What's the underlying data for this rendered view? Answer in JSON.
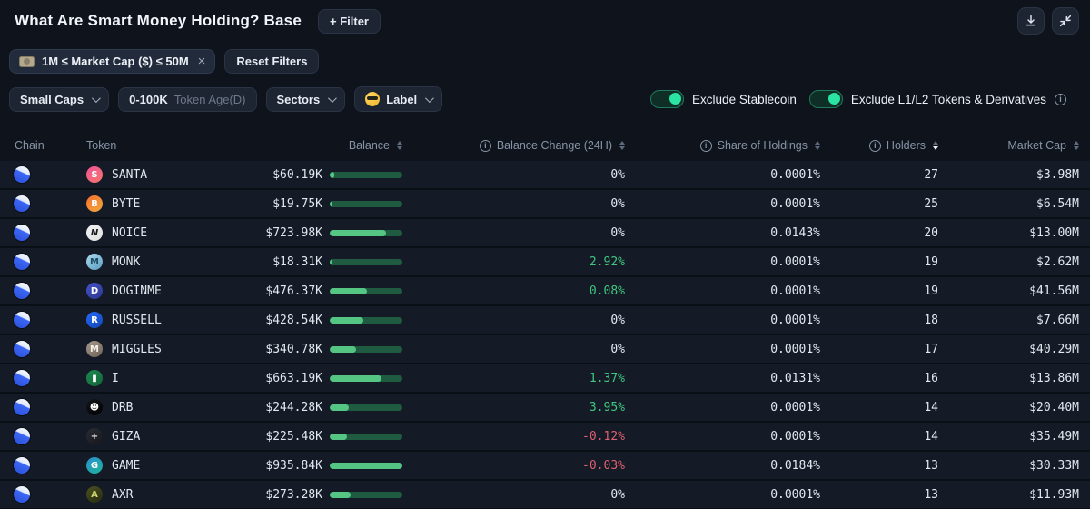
{
  "header": {
    "title": "What Are Smart Money Holding? Base",
    "filter_button": "+ Filter"
  },
  "filter_bar": {
    "chip_label": "1M ≤ Market Cap ($) ≤ 50M",
    "chip_close": "×",
    "reset_label": "Reset Filters"
  },
  "controls": {
    "market_cap_value": "Small Caps",
    "token_age_value": "0-100K",
    "token_age_label": "Token Age(D)",
    "sectors_label": "Sectors",
    "label_label": "Label",
    "toggles": [
      {
        "label": "Exclude Stablecoin",
        "on": true,
        "info": false
      },
      {
        "label": "Exclude L1/L2 Tokens & Derivatives",
        "on": true,
        "info": true
      }
    ]
  },
  "icons": {
    "top_right": [
      "download-icon",
      "collapse-icon"
    ],
    "chain": "base-chain-icon",
    "chip": "money-banknote-icon",
    "label_chip": "sunglasses-face-icon"
  },
  "colors": {
    "accent_green": "#2be3a2",
    "bar_fill": "#55c584",
    "bar_track": "#1f5b40",
    "positive": "#3fc77f",
    "negative": "#e0606f",
    "background": "#0e131c",
    "row_bg": "#151b26"
  },
  "table": {
    "columns": [
      {
        "label": "Chain",
        "info": false,
        "sortable": false,
        "sorted": "none"
      },
      {
        "label": "Token",
        "info": false,
        "sortable": false,
        "sorted": "none"
      },
      {
        "label": "Balance",
        "info": false,
        "sortable": true,
        "sorted": "none"
      },
      {
        "label": "Balance Change (24H)",
        "info": true,
        "sortable": true,
        "sorted": "none"
      },
      {
        "label": "Share of Holdings",
        "info": true,
        "sortable": true,
        "sorted": "none"
      },
      {
        "label": "Holders",
        "info": true,
        "sortable": true,
        "sorted": "desc"
      },
      {
        "label": "Market Cap",
        "info": false,
        "sortable": true,
        "sorted": "none"
      }
    ],
    "rows": [
      {
        "chain": "Base",
        "token": "SANTA",
        "balance": "$60.19K",
        "bar_pct": 6.4,
        "change": "0%",
        "change_dir": "zero",
        "share": "0.0001%",
        "holders": "27",
        "market_cap": "$3.98M",
        "icon": {
          "glyph": "S",
          "bg": "#ee5296",
          "bg2": "#f8766b",
          "fg": "#ffffff",
          "italic": false
        }
      },
      {
        "chain": "Base",
        "token": "BYTE",
        "balance": "$19.75K",
        "bar_pct": 2.1,
        "change": "0%",
        "change_dir": "zero",
        "share": "0.0001%",
        "holders": "25",
        "market_cap": "$6.54M",
        "icon": {
          "glyph": "B",
          "bg": "#f4702f",
          "bg2": "#f2a93c",
          "fg": "#ffffff",
          "italic": false
        }
      },
      {
        "chain": "Base",
        "token": "NOICE",
        "balance": "$723.98K",
        "bar_pct": 77.4,
        "change": "0%",
        "change_dir": "zero",
        "share": "0.0143%",
        "holders": "20",
        "market_cap": "$13.00M",
        "icon": {
          "glyph": "N",
          "bg": "#f2f2f2",
          "bg2": "#e0e0e0",
          "fg": "#15161a",
          "italic": true
        }
      },
      {
        "chain": "Base",
        "token": "MONK",
        "balance": "$18.31K",
        "bar_pct": 2.0,
        "change": "2.92%",
        "change_dir": "pos",
        "share": "0.0001%",
        "holders": "19",
        "market_cap": "$2.62M",
        "icon": {
          "glyph": "M",
          "bg": "#aedcee",
          "bg2": "#5a9cc0",
          "fg": "#1d4e66",
          "italic": false
        }
      },
      {
        "chain": "Base",
        "token": "DOGINME",
        "balance": "$476.37K",
        "bar_pct": 50.9,
        "change": "0.08%",
        "change_dir": "pos",
        "share": "0.0001%",
        "holders": "19",
        "market_cap": "$41.56M",
        "icon": {
          "glyph": "D",
          "bg": "#4353c9",
          "bg2": "#2c3690",
          "fg": "#ffffff",
          "italic": false
        }
      },
      {
        "chain": "Base",
        "token": "RUSSELL",
        "balance": "$428.54K",
        "bar_pct": 45.8,
        "change": "0%",
        "change_dir": "zero",
        "share": "0.0001%",
        "holders": "18",
        "market_cap": "$7.66M",
        "icon": {
          "glyph": "R",
          "bg": "#2469f6",
          "bg2": "#1446b8",
          "fg": "#ffffff",
          "italic": false
        }
      },
      {
        "chain": "Base",
        "token": "MIGGLES",
        "balance": "$340.78K",
        "bar_pct": 36.4,
        "change": "0%",
        "change_dir": "zero",
        "share": "0.0001%",
        "holders": "17",
        "market_cap": "$40.29M",
        "icon": {
          "glyph": "M",
          "bg": "#a79a8c",
          "bg2": "#6e6258",
          "fg": "#f4efe8",
          "italic": false
        }
      },
      {
        "chain": "Base",
        "token": "I",
        "balance": "$663.19K",
        "bar_pct": 70.9,
        "change": "1.37%",
        "change_dir": "pos",
        "share": "0.0131%",
        "holders": "16",
        "market_cap": "$13.86M",
        "icon": {
          "glyph": "▮",
          "bg": "#1e8a50",
          "bg2": "#136239",
          "fg": "#ffffff",
          "italic": false
        }
      },
      {
        "chain": "Base",
        "token": "DRB",
        "balance": "$244.28K",
        "bar_pct": 26.1,
        "change": "3.95%",
        "change_dir": "pos",
        "share": "0.0001%",
        "holders": "14",
        "market_cap": "$20.40M",
        "icon": {
          "glyph": "☻",
          "bg": "#15161a",
          "bg2": "#000000",
          "fg": "#ffffff",
          "italic": false
        }
      },
      {
        "chain": "Base",
        "token": "GIZA",
        "balance": "$225.48K",
        "bar_pct": 24.1,
        "change": "-0.12%",
        "change_dir": "neg",
        "share": "0.0001%",
        "holders": "14",
        "market_cap": "$35.49M",
        "icon": {
          "glyph": "+",
          "bg": "#2a2c34",
          "bg2": "#17181d",
          "fg": "#e8e8e8",
          "italic": false
        }
      },
      {
        "chain": "Base",
        "token": "GAME",
        "balance": "$935.84K",
        "bar_pct": 100,
        "change": "-0.03%",
        "change_dir": "neg",
        "share": "0.0184%",
        "holders": "13",
        "market_cap": "$30.33M",
        "icon": {
          "glyph": "G",
          "bg": "#2a8fd0",
          "bg2": "#1db39a",
          "fg": "#ffffff",
          "italic": false
        }
      },
      {
        "chain": "Base",
        "token": "AXR",
        "balance": "$273.28K",
        "bar_pct": 29.2,
        "change": "0%",
        "change_dir": "zero",
        "share": "0.0001%",
        "holders": "13",
        "market_cap": "$11.93M",
        "icon": {
          "glyph": "A",
          "bg": "#4d521f",
          "bg2": "#272a10",
          "fg": "#c9d36e",
          "italic": false
        }
      }
    ]
  }
}
